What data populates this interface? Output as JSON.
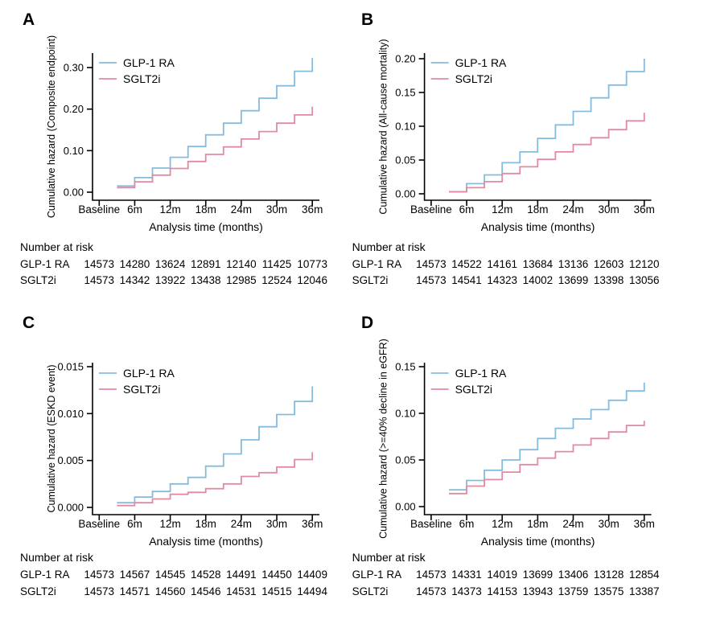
{
  "figure": {
    "background": "#ffffff",
    "risk_table_header": "Number at risk",
    "x_axis": {
      "label": "Analysis time (months)",
      "tick_labels": [
        "Baseline",
        "6m",
        "12m",
        "18m",
        "24m",
        "30m",
        "36m"
      ],
      "tick_months": [
        0,
        6,
        12,
        18,
        24,
        30,
        36
      ]
    },
    "legend": [
      {
        "label": "GLP-1 RA",
        "color": "#84bcdd"
      },
      {
        "label": "SGLT2i",
        "color": "#e18aa2"
      }
    ],
    "colors": {
      "glp1_ra": "#84bcdd",
      "sglt2i": "#e18aa2",
      "axis": "#000000",
      "text": "#000000"
    }
  },
  "chart_data": [
    {
      "panel": "A",
      "type": "line",
      "subtype": "step-cumulative-hazard",
      "title": "",
      "ylabel": "Cumulative hazard (Composite endpoint)",
      "xlabel": "Analysis time (months)",
      "x_tick_labels": [
        "Baseline",
        "6m",
        "12m",
        "18m",
        "24m",
        "30m",
        "36m"
      ],
      "yticks": [
        0.0,
        0.1,
        0.2,
        0.3
      ],
      "ytick_labels": [
        "0.00",
        "0.10",
        "0.20",
        "0.30"
      ],
      "ylim": [
        0,
        0.335
      ],
      "xlim": [
        0,
        37
      ],
      "grid": false,
      "legend_position": "top-left-inside",
      "step_months": [
        3,
        6,
        9,
        12,
        15,
        18,
        21,
        24,
        27,
        30,
        33,
        36
      ],
      "series": [
        {
          "name": "GLP-1 RA",
          "color": "#84bcdd",
          "values": [
            0.015,
            0.035,
            0.058,
            0.084,
            0.11,
            0.138,
            0.166,
            0.196,
            0.226,
            0.256,
            0.291,
            0.323
          ]
        },
        {
          "name": "SGLT2i",
          "color": "#e18aa2",
          "values": [
            0.011,
            0.025,
            0.041,
            0.057,
            0.074,
            0.091,
            0.109,
            0.128,
            0.146,
            0.166,
            0.186,
            0.206
          ]
        }
      ],
      "number_at_risk": {
        "rows": [
          {
            "label": "GLP-1 RA",
            "values": [
              14573,
              14280,
              13624,
              12891,
              12140,
              11425,
              10773
            ]
          },
          {
            "label": "SGLT2i",
            "values": [
              14573,
              14342,
              13922,
              13438,
              12985,
              12524,
              12046
            ]
          }
        ]
      }
    },
    {
      "panel": "B",
      "type": "line",
      "subtype": "step-cumulative-hazard",
      "title": "",
      "ylabel": "Cumulative hazard (All-cause mortality)",
      "xlabel": "Analysis time (months)",
      "x_tick_labels": [
        "Baseline",
        "6m",
        "12m",
        "18m",
        "24m",
        "30m",
        "36m"
      ],
      "yticks": [
        0.0,
        0.05,
        0.1,
        0.15,
        0.2
      ],
      "ytick_labels": [
        "0.00",
        "0.05",
        "0.10",
        "0.15",
        "0.20"
      ],
      "ylim": [
        0,
        0.21
      ],
      "xlim": [
        0,
        37
      ],
      "grid": false,
      "legend_position": "top-left-inside",
      "step_months": [
        3,
        6,
        9,
        12,
        15,
        18,
        21,
        24,
        27,
        30,
        33,
        36
      ],
      "series": [
        {
          "name": "GLP-1 RA",
          "color": "#84bcdd",
          "values": [
            0.003,
            0.015,
            0.028,
            0.046,
            0.062,
            0.082,
            0.102,
            0.122,
            0.142,
            0.161,
            0.181,
            0.2
          ]
        },
        {
          "name": "SGLT2i",
          "color": "#e18aa2",
          "values": [
            0.003,
            0.009,
            0.018,
            0.03,
            0.04,
            0.051,
            0.062,
            0.073,
            0.083,
            0.095,
            0.108,
            0.12
          ]
        }
      ],
      "number_at_risk": {
        "rows": [
          {
            "label": "GLP-1 RA",
            "values": [
              14573,
              14522,
              14161,
              13684,
              13136,
              12603,
              12120
            ]
          },
          {
            "label": "SGLT2i",
            "values": [
              14573,
              14541,
              14323,
              14002,
              13699,
              13398,
              13056
            ]
          }
        ]
      }
    },
    {
      "panel": "C",
      "type": "line",
      "subtype": "step-cumulative-hazard",
      "title": "",
      "ylabel": "Cumulative hazard (ESKD event)",
      "xlabel": "Analysis time (months)",
      "x_tick_labels": [
        "Baseline",
        "6m",
        "12m",
        "18m",
        "24m",
        "30m",
        "36m"
      ],
      "yticks": [
        0.0,
        0.005,
        0.01,
        0.015
      ],
      "ytick_labels": [
        "0.000",
        "0.005",
        "0.010",
        "0.015"
      ],
      "ylim": [
        0,
        0.0155
      ],
      "xlim": [
        0,
        37
      ],
      "grid": false,
      "legend_position": "top-left-inside",
      "step_months": [
        3,
        6,
        9,
        12,
        15,
        18,
        21,
        24,
        27,
        30,
        33,
        36
      ],
      "series": [
        {
          "name": "GLP-1 RA",
          "color": "#84bcdd",
          "values": [
            0.0005,
            0.0011,
            0.0017,
            0.0025,
            0.0032,
            0.0044,
            0.0057,
            0.0072,
            0.0086,
            0.0099,
            0.0113,
            0.0129
          ]
        },
        {
          "name": "SGLT2i",
          "color": "#e18aa2",
          "values": [
            0.0002,
            0.0005,
            0.0009,
            0.0014,
            0.0016,
            0.002,
            0.0025,
            0.0033,
            0.0037,
            0.0043,
            0.0051,
            0.0059
          ]
        }
      ],
      "number_at_risk": {
        "rows": [
          {
            "label": "GLP-1 RA",
            "values": [
              14573,
              14567,
              14545,
              14528,
              14491,
              14450,
              14409
            ]
          },
          {
            "label": "SGLT2i",
            "values": [
              14573,
              14571,
              14560,
              14546,
              14531,
              14515,
              14494
            ]
          }
        ]
      }
    },
    {
      "panel": "D",
      "type": "line",
      "subtype": "step-cumulative-hazard",
      "title": "",
      "ylabel": "Cumulative hazard (>=40% decline in eGFR)",
      "xlabel": "Analysis time (months)",
      "x_tick_labels": [
        "Baseline",
        "6m",
        "12m",
        "18m",
        "24m",
        "30m",
        "36m"
      ],
      "yticks": [
        0.0,
        0.05,
        0.1,
        0.15
      ],
      "ytick_labels": [
        "0.00",
        "0.05",
        "0.10",
        "0.15"
      ],
      "ylim": [
        0,
        0.155
      ],
      "xlim": [
        0,
        37
      ],
      "grid": false,
      "legend_position": "top-left-inside",
      "step_months": [
        3,
        6,
        9,
        12,
        15,
        18,
        21,
        24,
        27,
        30,
        33,
        36
      ],
      "series": [
        {
          "name": "GLP-1 RA",
          "color": "#84bcdd",
          "values": [
            0.018,
            0.028,
            0.039,
            0.05,
            0.061,
            0.073,
            0.084,
            0.094,
            0.104,
            0.114,
            0.124,
            0.133
          ]
        },
        {
          "name": "SGLT2i",
          "color": "#e18aa2",
          "values": [
            0.014,
            0.022,
            0.029,
            0.037,
            0.045,
            0.052,
            0.059,
            0.066,
            0.073,
            0.08,
            0.087,
            0.092
          ]
        }
      ],
      "number_at_risk": {
        "rows": [
          {
            "label": "GLP-1 RA",
            "values": [
              14573,
              14331,
              14019,
              13699,
              13406,
              13128,
              12854
            ]
          },
          {
            "label": "SGLT2i",
            "values": [
              14573,
              14373,
              14153,
              13943,
              13759,
              13575,
              13387
            ]
          }
        ]
      }
    }
  ]
}
